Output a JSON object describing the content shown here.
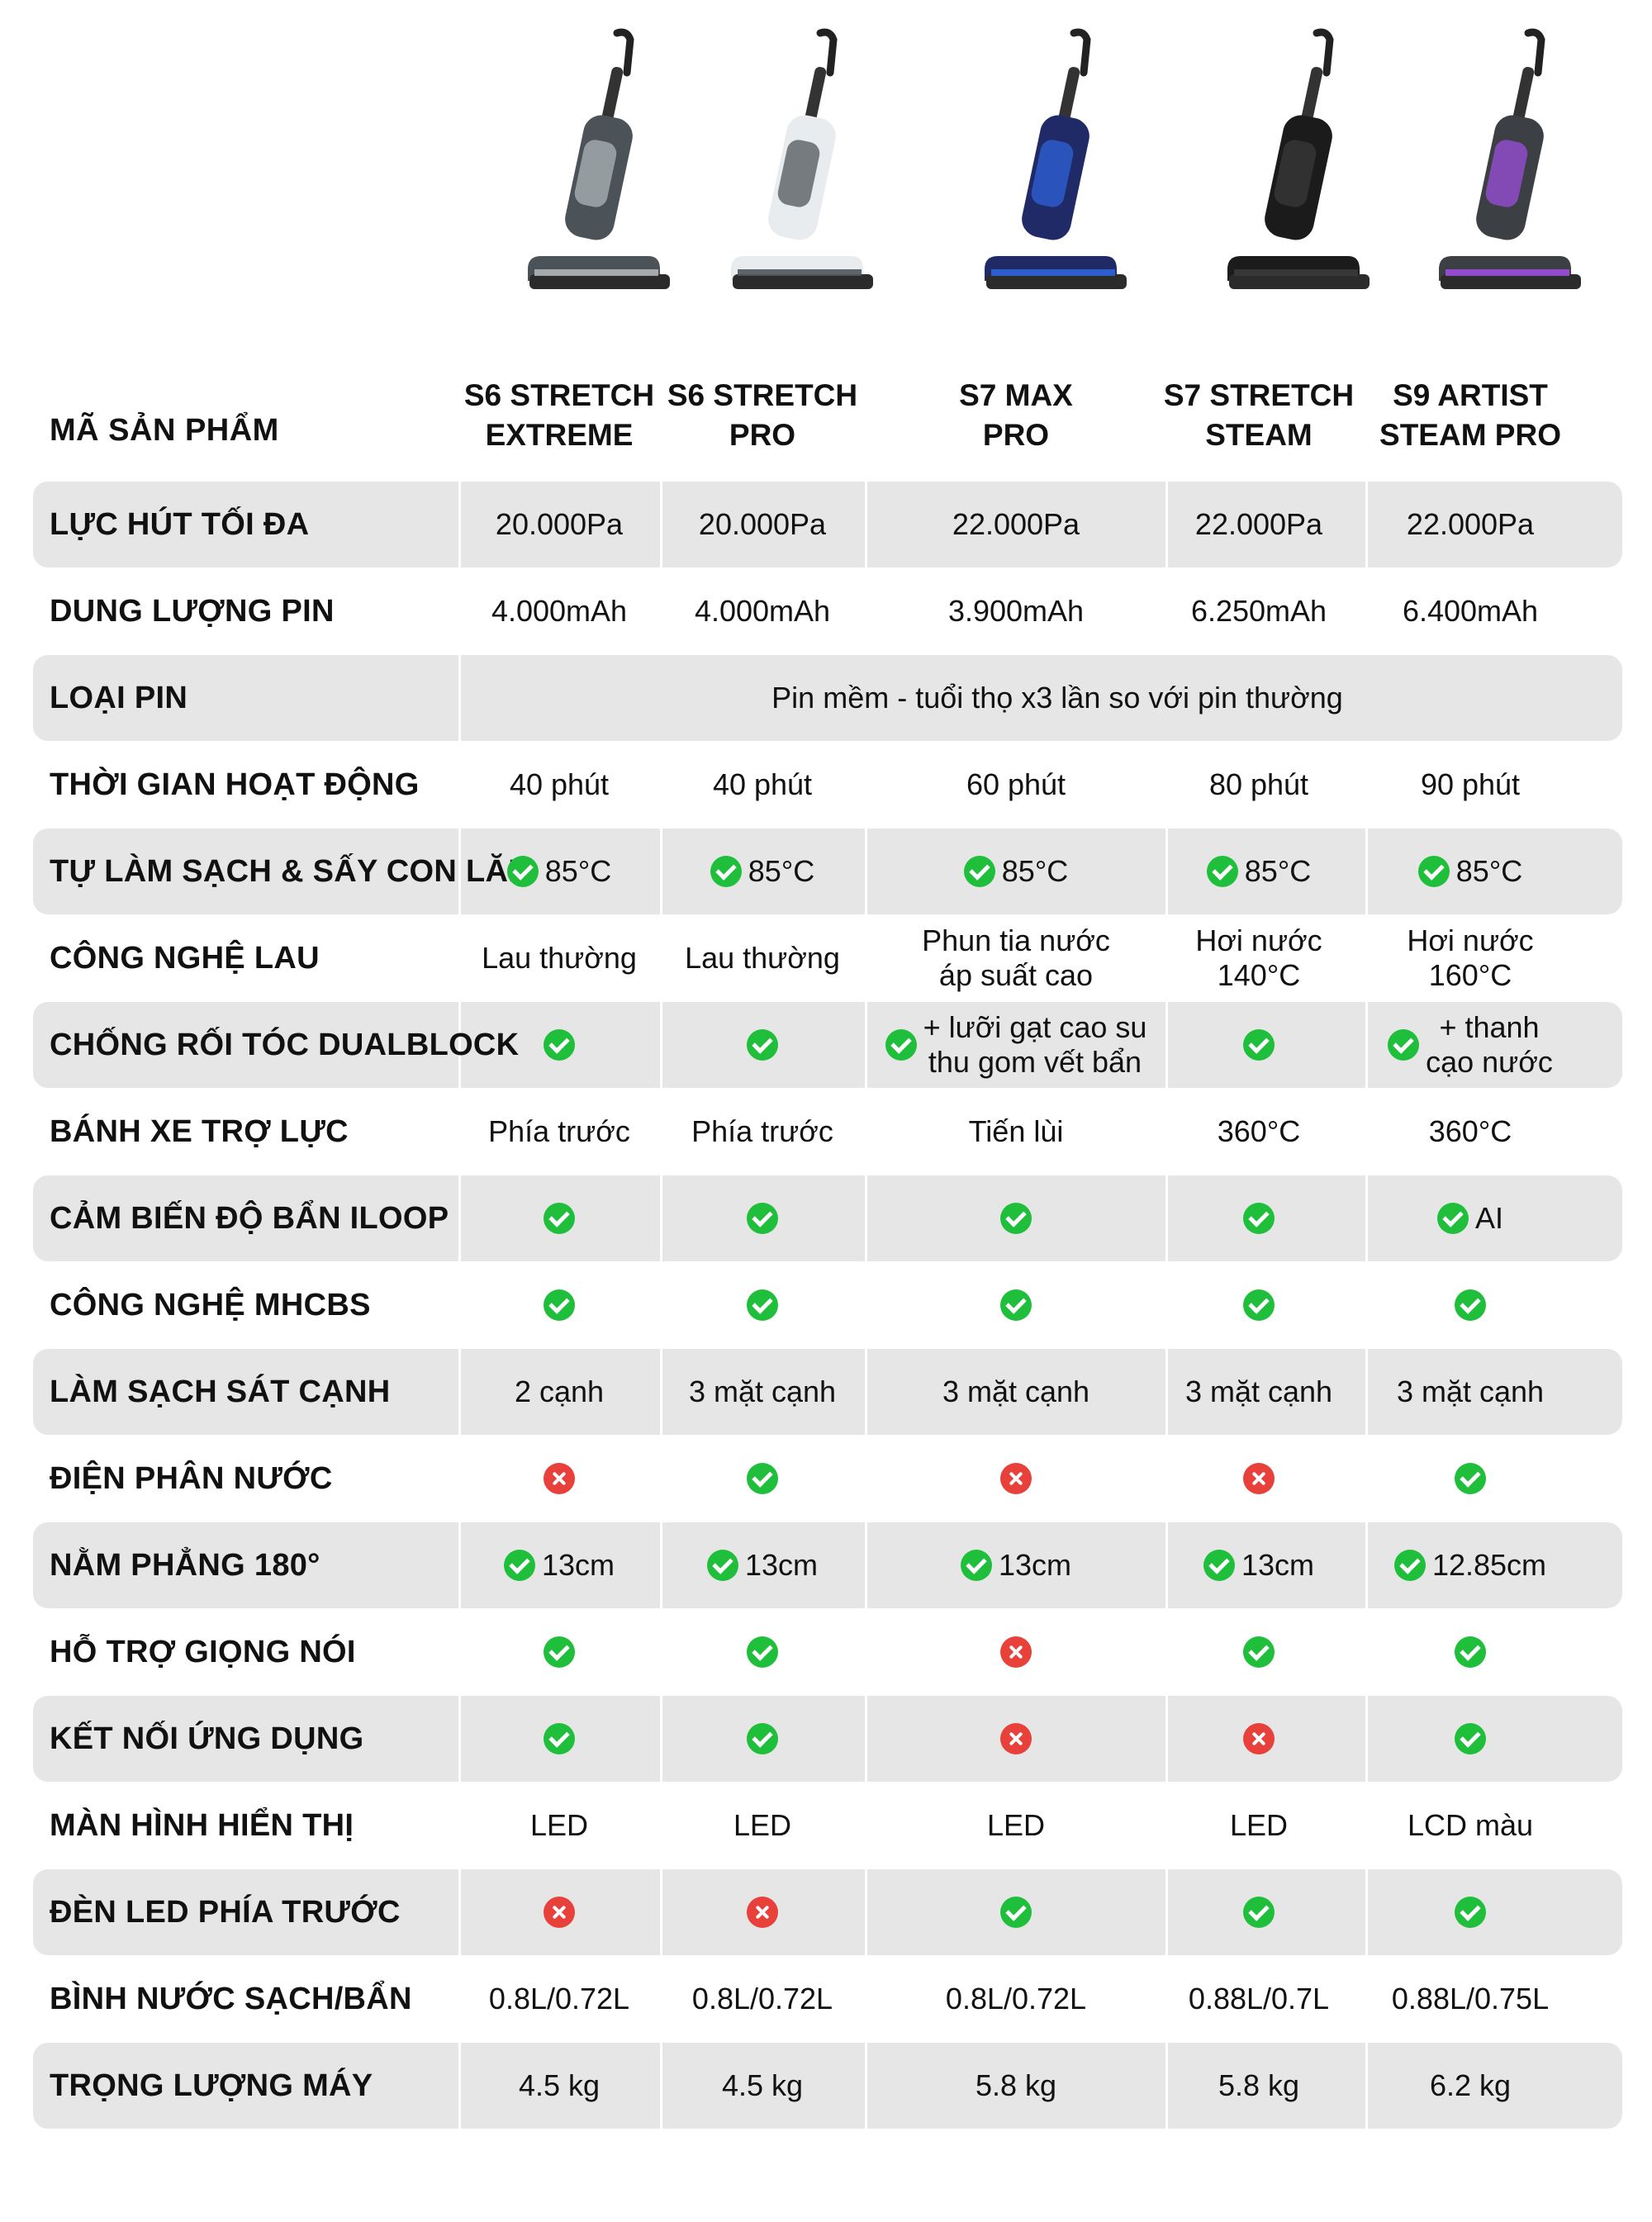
{
  "product_images": [
    {
      "icon": "vacuum-gray-icon",
      "body_color": "#4b5358",
      "accent": "#aeb4b8"
    },
    {
      "icon": "vacuum-white-icon",
      "body_color": "#e8ecef",
      "accent": "#50565a"
    },
    {
      "icon": "vacuum-navy-icon",
      "body_color": "#1f2a66",
      "accent": "#2f63d9"
    },
    {
      "icon": "vacuum-black-icon",
      "body_color": "#1b1b1b",
      "accent": "#3a3a3a"
    },
    {
      "icon": "vacuum-graphite-icon",
      "body_color": "#3c4045",
      "accent": "#9b4ddb"
    }
  ],
  "header": {
    "label": "MÃ SẢN PHẨM",
    "columns": [
      "S6 STRETCH\nEXTREME",
      "S6 STRETCH\nPRO",
      "S7 MAX\nPRO",
      "S7 STRETCH\nSTEAM",
      "S9 ARTIST\nSTEAM PRO"
    ]
  },
  "status_colors": {
    "yes": "#1fbf3c",
    "no": "#e8403a",
    "row_shade": "#e6e6e6"
  },
  "rows": [
    {
      "label": "LỰC HÚT TỐI ĐA",
      "cells": [
        {
          "text": "20.000Pa"
        },
        {
          "text": "20.000Pa"
        },
        {
          "text": "22.000Pa"
        },
        {
          "text": "22.000Pa"
        },
        {
          "text": "22.000Pa"
        }
      ]
    },
    {
      "label": "DUNG LƯỢNG PIN",
      "cells": [
        {
          "text": "4.000mAh"
        },
        {
          "text": "4.000mAh"
        },
        {
          "text": "3.900mAh"
        },
        {
          "text": "6.250mAh"
        },
        {
          "text": "6.400mAh"
        }
      ]
    },
    {
      "label": "LOẠI PIN",
      "span": "Pin mềm - tuổi thọ x3 lần so với pin thường"
    },
    {
      "label": "THỜI GIAN HOẠT ĐỘNG",
      "cells": [
        {
          "text": "40 phút"
        },
        {
          "text": "40 phút"
        },
        {
          "text": "60 phút"
        },
        {
          "text": "80 phút"
        },
        {
          "text": "90 phút"
        }
      ]
    },
    {
      "label": "TỰ LÀM SẠCH & SẤY CON LĂN",
      "cells": [
        {
          "icon": "check",
          "text": "85°C"
        },
        {
          "icon": "check",
          "text": "85°C"
        },
        {
          "icon": "check",
          "text": "85°C"
        },
        {
          "icon": "check",
          "text": "85°C"
        },
        {
          "icon": "check",
          "text": "85°C"
        }
      ]
    },
    {
      "label": "CÔNG NGHỆ LAU",
      "cells": [
        {
          "text": "Lau thường"
        },
        {
          "text": "Lau thường"
        },
        {
          "text": "Phun tia nước\náp suất cao"
        },
        {
          "text": "Hơi nước\n140°C"
        },
        {
          "text": "Hơi nước\n160°C"
        }
      ]
    },
    {
      "label": "CHỐNG RỐI TÓC DUALBLOCK",
      "cells": [
        {
          "icon": "check"
        },
        {
          "icon": "check"
        },
        {
          "icon": "check",
          "text": "+ lưỡi gạt cao su\nthu gom vết bẩn"
        },
        {
          "icon": "check"
        },
        {
          "icon": "check",
          "text": "+ thanh\ncạo nước"
        }
      ]
    },
    {
      "label": "BÁNH XE TRỢ LỰC",
      "cells": [
        {
          "text": "Phía trước"
        },
        {
          "text": "Phía trước"
        },
        {
          "text": "Tiến lùi"
        },
        {
          "text": "360°C"
        },
        {
          "text": "360°C"
        }
      ]
    },
    {
      "label": "CẢM BIẾN ĐỘ BẨN ILOOP",
      "cells": [
        {
          "icon": "check"
        },
        {
          "icon": "check"
        },
        {
          "icon": "check"
        },
        {
          "icon": "check"
        },
        {
          "icon": "check",
          "text": "AI"
        }
      ]
    },
    {
      "label": "CÔNG NGHỆ MHCBS",
      "cells": [
        {
          "icon": "check"
        },
        {
          "icon": "check"
        },
        {
          "icon": "check"
        },
        {
          "icon": "check"
        },
        {
          "icon": "check"
        }
      ]
    },
    {
      "label": "LÀM SẠCH SÁT CẠNH",
      "cells": [
        {
          "text": "2 cạnh"
        },
        {
          "text": "3 mặt cạnh"
        },
        {
          "text": "3 mặt cạnh"
        },
        {
          "text": "3 mặt cạnh"
        },
        {
          "text": "3 mặt cạnh"
        }
      ]
    },
    {
      "label": "ĐIỆN PHÂN NƯỚC",
      "cells": [
        {
          "icon": "cross"
        },
        {
          "icon": "check"
        },
        {
          "icon": "cross"
        },
        {
          "icon": "cross"
        },
        {
          "icon": "check"
        }
      ]
    },
    {
      "label": "NẰM PHẲNG 180°",
      "cells": [
        {
          "icon": "check",
          "text": "13cm"
        },
        {
          "icon": "check",
          "text": "13cm"
        },
        {
          "icon": "check",
          "text": "13cm"
        },
        {
          "icon": "check",
          "text": "13cm"
        },
        {
          "icon": "check",
          "text": "12.85cm"
        }
      ]
    },
    {
      "label": "HỖ TRỢ GIỌNG NÓI",
      "cells": [
        {
          "icon": "check"
        },
        {
          "icon": "check"
        },
        {
          "icon": "cross"
        },
        {
          "icon": "check"
        },
        {
          "icon": "check"
        }
      ]
    },
    {
      "label": "KẾT NỐI ỨNG DỤNG",
      "cells": [
        {
          "icon": "check"
        },
        {
          "icon": "check"
        },
        {
          "icon": "cross"
        },
        {
          "icon": "cross"
        },
        {
          "icon": "check"
        }
      ]
    },
    {
      "label": "MÀN HÌNH HIỂN THỊ",
      "cells": [
        {
          "text": "LED"
        },
        {
          "text": "LED"
        },
        {
          "text": "LED"
        },
        {
          "text": "LED"
        },
        {
          "text": "LCD màu"
        }
      ]
    },
    {
      "label": "ĐÈN LED PHÍA TRƯỚC",
      "cells": [
        {
          "icon": "cross"
        },
        {
          "icon": "cross"
        },
        {
          "icon": "check"
        },
        {
          "icon": "check"
        },
        {
          "icon": "check"
        }
      ]
    },
    {
      "label": "BÌNH NƯỚC SẠCH/BẨN",
      "cells": [
        {
          "text": "0.8L/0.72L"
        },
        {
          "text": "0.8L/0.72L"
        },
        {
          "text": "0.8L/0.72L"
        },
        {
          "text": "0.88L/0.7L"
        },
        {
          "text": "0.88L/0.75L"
        }
      ]
    },
    {
      "label": "TRỌNG LƯỢNG MÁY",
      "cells": [
        {
          "text": "4.5 kg"
        },
        {
          "text": "4.5 kg"
        },
        {
          "text": "5.8 kg"
        },
        {
          "text": "5.8 kg"
        },
        {
          "text": "6.2 kg"
        }
      ]
    }
  ]
}
